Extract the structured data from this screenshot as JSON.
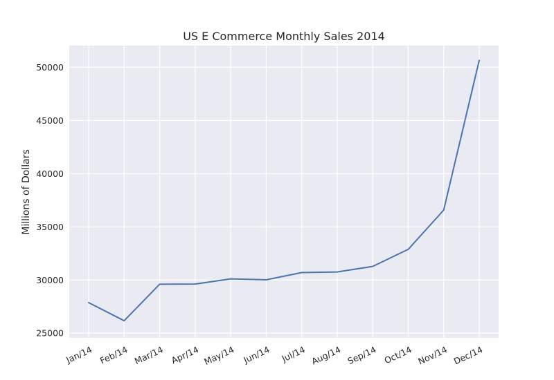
{
  "chart_data": {
    "type": "line",
    "title": "US E Commerce Monthly Sales 2014",
    "xlabel": "",
    "ylabel": "Millions of Dollars",
    "categories": [
      "Jan/14",
      "Feb/14",
      "Mar/14",
      "Apr/14",
      "May/14",
      "Jun/14",
      "Jul/14",
      "Aug/14",
      "Sep/14",
      "Oct/14",
      "Nov/14",
      "Dec/14"
    ],
    "series": [
      {
        "values": [
          27870,
          26170,
          29600,
          29620,
          30110,
          30020,
          30700,
          30760,
          31280,
          32880,
          36570,
          50650
        ],
        "color": "#4c72b0"
      }
    ],
    "ylim": [
      24560,
      52040
    ],
    "yticks": [
      25000,
      30000,
      35000,
      40000,
      45000,
      50000
    ],
    "ytick_labels": [
      "25000",
      "30000",
      "35000",
      "40000",
      "45000",
      "50000"
    ],
    "grid": true,
    "legend": "none",
    "xtick_rotation": -25
  }
}
